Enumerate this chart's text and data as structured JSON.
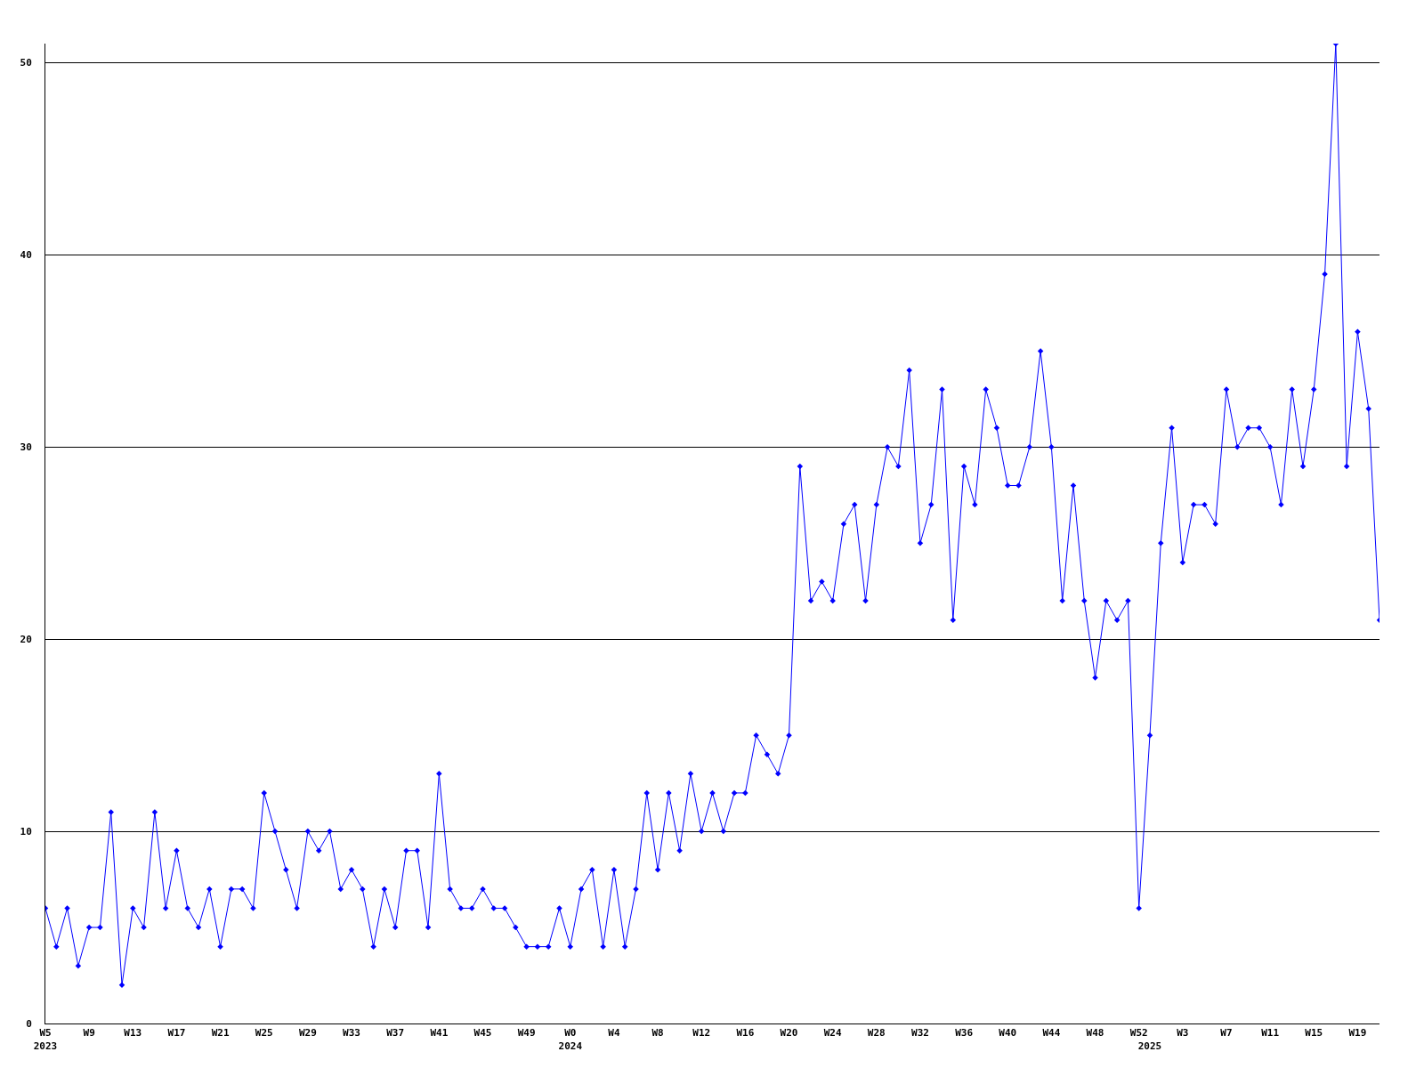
{
  "chart_data": {
    "type": "line",
    "categories": [
      "W5\n2023",
      null,
      null,
      null,
      "W9",
      null,
      null,
      null,
      "W13",
      null,
      null,
      null,
      "W17",
      null,
      null,
      null,
      "W21",
      null,
      null,
      null,
      "W25",
      null,
      null,
      null,
      "W29",
      null,
      null,
      null,
      "W33",
      null,
      null,
      null,
      "W37",
      null,
      null,
      null,
      "W41",
      null,
      null,
      null,
      "W45",
      null,
      null,
      null,
      "W49",
      null,
      null,
      null,
      "W0\n2024",
      null,
      null,
      null,
      "W4",
      null,
      null,
      null,
      "W8",
      null,
      null,
      null,
      "W12",
      null,
      null,
      null,
      "W16",
      null,
      null,
      null,
      "W20",
      null,
      null,
      null,
      "W24",
      null,
      null,
      null,
      "W28",
      null,
      null,
      null,
      "W32",
      null,
      null,
      null,
      "W36",
      null,
      null,
      null,
      "W40",
      null,
      null,
      null,
      "W44",
      null,
      null,
      null,
      "W48",
      null,
      null,
      null,
      "W52",
      "\n2025",
      null,
      null,
      "W3",
      null,
      null,
      null,
      "W7",
      null,
      null,
      null,
      "W11",
      null,
      null,
      null,
      "W15",
      null,
      null,
      null,
      "W19",
      null,
      null
    ],
    "series": [
      {
        "color": "#0000ff",
        "values": [
          6,
          4,
          6,
          3,
          5,
          5,
          11,
          2,
          6,
          5,
          11,
          6,
          9,
          6,
          5,
          7,
          4,
          7,
          7,
          6,
          12,
          10,
          8,
          6,
          10,
          9,
          10,
          7,
          8,
          7,
          4,
          7,
          5,
          9,
          9,
          5,
          13,
          7,
          6,
          6,
          7,
          6,
          6,
          5,
          4,
          4,
          4,
          6,
          4,
          7,
          8,
          4,
          8,
          4,
          7,
          12,
          8,
          12,
          9,
          13,
          10,
          12,
          10,
          12,
          12,
          15,
          14,
          13,
          15,
          29,
          22,
          23,
          22,
          26,
          27,
          22,
          27,
          30,
          29,
          34,
          25,
          27,
          33,
          21,
          29,
          27,
          33,
          31,
          28,
          28,
          30,
          35,
          30,
          22,
          28,
          22,
          18,
          22,
          21,
          22,
          6,
          15,
          25,
          31,
          24,
          27,
          27,
          26,
          33,
          30,
          31,
          31,
          30,
          27,
          33,
          29,
          33,
          39,
          51,
          29,
          36,
          32,
          21
        ]
      }
    ],
    "ylim": [
      0,
      51
    ],
    "yticks": [
      0,
      10,
      20,
      30,
      40,
      50
    ],
    "grid": "y",
    "marker": "diamond",
    "line_style": "solid"
  }
}
